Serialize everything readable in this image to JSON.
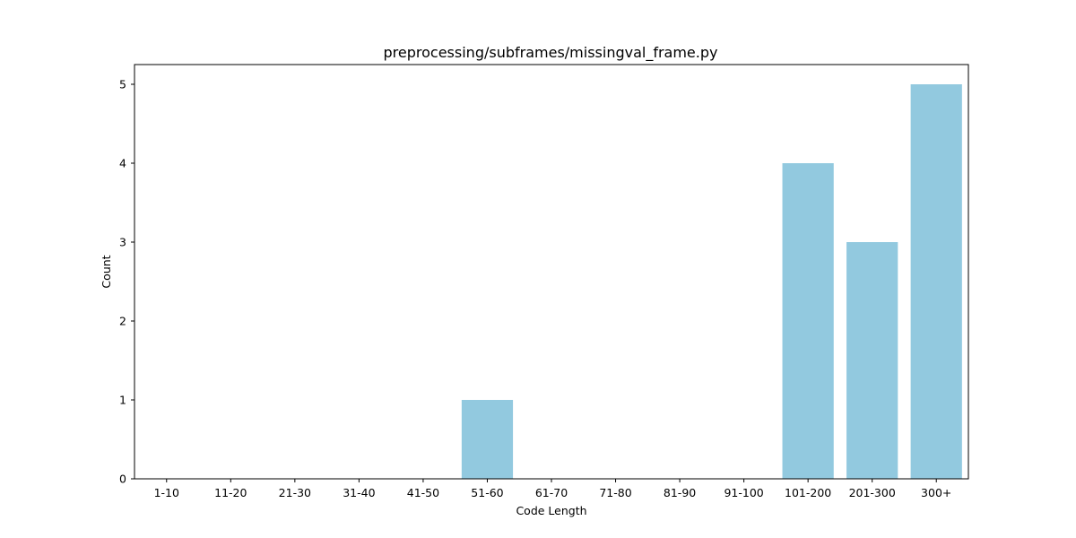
{
  "chart_data": {
    "type": "bar",
    "title": "preprocessing/subframes/missingval_frame.py",
    "xlabel": "Code Length",
    "ylabel": "Count",
    "categories": [
      "1-10",
      "11-20",
      "21-30",
      "31-40",
      "41-50",
      "51-60",
      "61-70",
      "71-80",
      "81-90",
      "91-100",
      "101-200",
      "201-300",
      "300+"
    ],
    "values": [
      0,
      0,
      0,
      0,
      0,
      1,
      0,
      0,
      0,
      0,
      4,
      3,
      5
    ],
    "yticks": [
      0,
      1,
      2,
      3,
      4,
      5
    ],
    "ylim": [
      0,
      5.25
    ],
    "bar_color": "#92c9df",
    "grid": false,
    "legend": "none"
  }
}
